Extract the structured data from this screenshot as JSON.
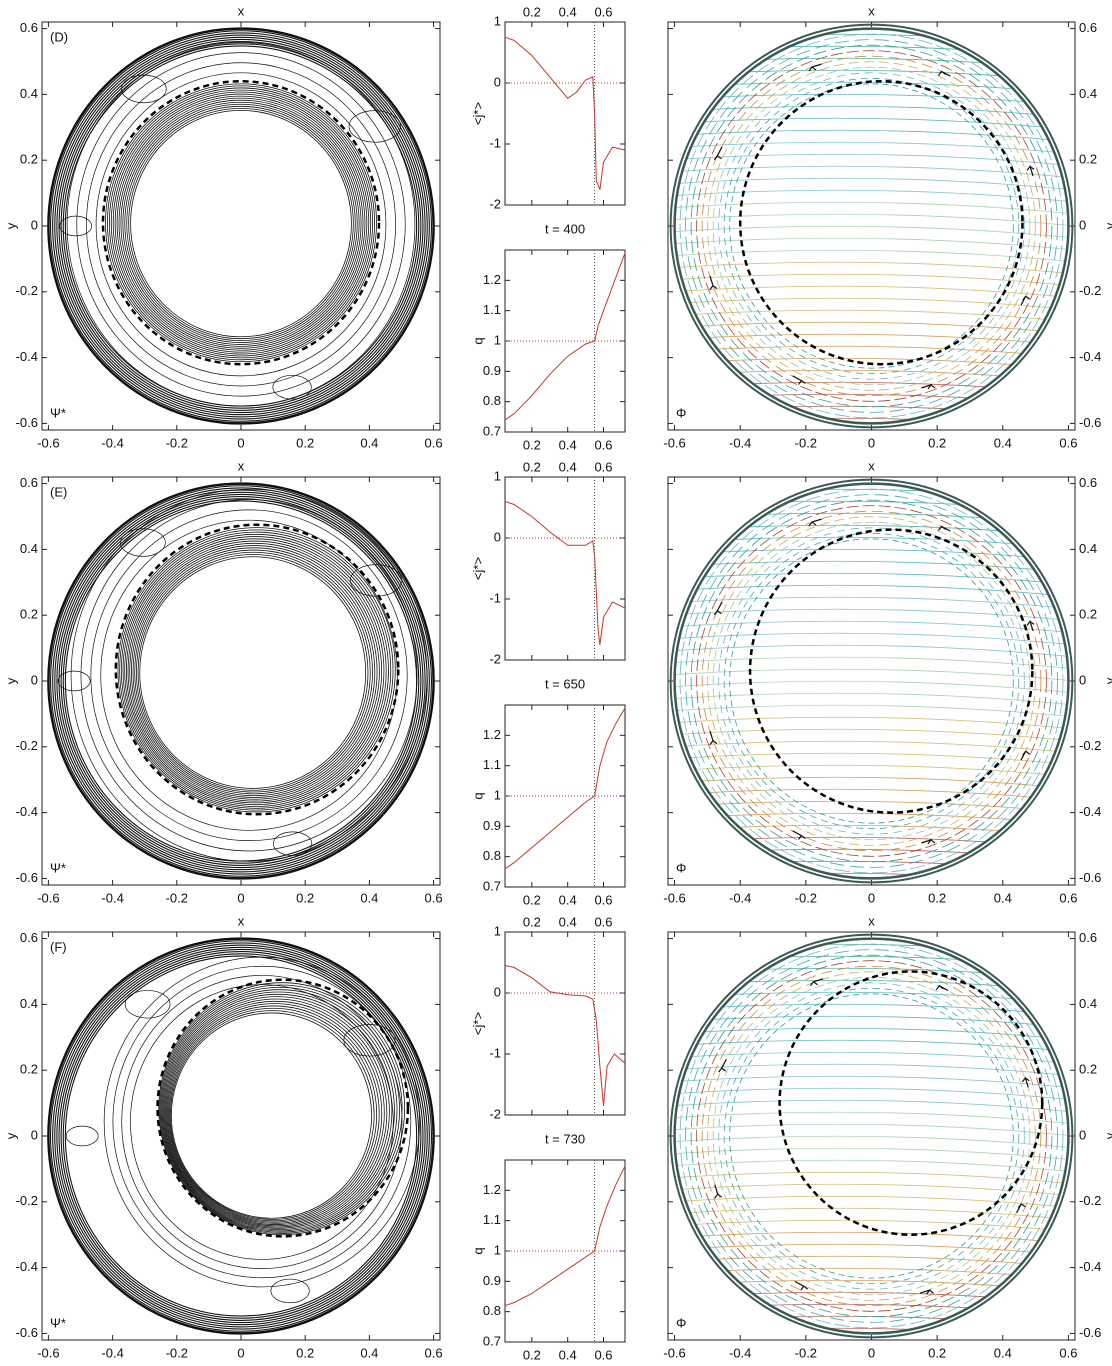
{
  "chart_data": [
    {
      "type": "contour",
      "panel": "(D)",
      "field_label": "Ψ*",
      "xlabel": "x",
      "ylabel": "y",
      "xlim": [
        -0.62,
        0.62
      ],
      "ylim": [
        -0.62,
        0.62
      ],
      "xticks": [
        -0.6,
        -0.4,
        -0.2,
        0,
        0.2,
        0.4,
        0.6
      ],
      "yticks": [
        -0.6,
        -0.4,
        -0.2,
        0,
        0.2,
        0.4,
        0.6
      ],
      "wall_radius": 0.6,
      "q1_surface": {
        "cx": 0,
        "cy": 0.01,
        "r": 0.43
      }
    },
    {
      "type": "line",
      "ylabel": "<j*>",
      "x_axis_side": "top",
      "x": [
        0.05,
        0.1,
        0.2,
        0.3,
        0.4,
        0.45,
        0.5,
        0.54,
        0.55,
        0.56,
        0.58,
        0.6,
        0.65,
        0.72
      ],
      "values": [
        0.75,
        0.7,
        0.45,
        0.1,
        -0.25,
        -0.15,
        0.05,
        0.1,
        -0.5,
        -1.6,
        -1.75,
        -1.3,
        -1.05,
        -1.1
      ],
      "color": "#c0392b",
      "xlim": [
        0.05,
        0.72
      ],
      "ylim": [
        -2,
        1
      ],
      "xticks": [
        0.2,
        0.4,
        0.6
      ],
      "yticks": [
        -2,
        -1,
        0,
        1
      ],
      "vline": 0.55,
      "hline": 0
    },
    {
      "type": "line",
      "title": "t = 400",
      "ylabel": "q",
      "x_axis_side": "bottom",
      "x": [
        0.05,
        0.1,
        0.2,
        0.3,
        0.4,
        0.5,
        0.55,
        0.57,
        0.6,
        0.65,
        0.72
      ],
      "values": [
        0.74,
        0.76,
        0.82,
        0.89,
        0.95,
        0.99,
        1.0,
        1.05,
        1.1,
        1.18,
        1.29
      ],
      "color": "#c0392b",
      "xlim": [
        0.05,
        0.72
      ],
      "ylim": [
        0.7,
        1.3
      ],
      "xticks": [
        0.2,
        0.4,
        0.6
      ],
      "yticks": [
        0.7,
        0.8,
        0.9,
        1,
        1.1,
        1.2
      ],
      "vline": 0.55,
      "hline": 1
    },
    {
      "type": "field",
      "field_label": "Φ",
      "xlabel": "x",
      "ylabel": "y",
      "ytick_side": "right",
      "xlim": [
        -0.62,
        0.62
      ],
      "ylim": [
        -0.62,
        0.62
      ],
      "xticks": [
        -0.6,
        -0.4,
        -0.2,
        0,
        0.2,
        0.4,
        0.6
      ],
      "yticks": [
        -0.6,
        -0.4,
        -0.2,
        0,
        0.2,
        0.4,
        0.6
      ],
      "wall_radius": 0.6,
      "q1_surface": {
        "cx": 0.03,
        "cy": 0.01,
        "r": 0.43
      }
    },
    {
      "type": "contour",
      "panel": "(E)",
      "field_label": "Ψ*",
      "xlabel": "x",
      "ylabel": "y",
      "xlim": [
        -0.62,
        0.62
      ],
      "ylim": [
        -0.62,
        0.62
      ],
      "xticks": [
        -0.6,
        -0.4,
        -0.2,
        0,
        0.2,
        0.4,
        0.6
      ],
      "yticks": [
        -0.6,
        -0.4,
        -0.2,
        0,
        0.2,
        0.4,
        0.6
      ],
      "wall_radius": 0.6,
      "q1_surface": {
        "cx": 0.05,
        "cy": 0.035,
        "r": 0.44
      }
    },
    {
      "type": "line",
      "ylabel": "<j*>",
      "x_axis_side": "top",
      "x": [
        0.05,
        0.1,
        0.2,
        0.3,
        0.4,
        0.5,
        0.54,
        0.55,
        0.57,
        0.58,
        0.6,
        0.65,
        0.72
      ],
      "values": [
        0.6,
        0.55,
        0.35,
        0.1,
        -0.12,
        -0.12,
        -0.05,
        -0.3,
        -1.5,
        -1.75,
        -1.3,
        -1.05,
        -1.15
      ],
      "color": "#c0392b",
      "xlim": [
        0.05,
        0.72
      ],
      "ylim": [
        -2,
        1
      ],
      "xticks": [
        0.2,
        0.4,
        0.6
      ],
      "yticks": [
        -2,
        -1,
        0,
        1
      ],
      "vline": 0.55,
      "hline": 0
    },
    {
      "type": "line",
      "title": "t = 650",
      "ylabel": "q",
      "x_axis_side": "bottom",
      "x": [
        0.05,
        0.1,
        0.2,
        0.3,
        0.4,
        0.5,
        0.55,
        0.58,
        0.62,
        0.67,
        0.72
      ],
      "values": [
        0.76,
        0.78,
        0.83,
        0.88,
        0.93,
        0.98,
        1.0,
        1.1,
        1.18,
        1.24,
        1.29
      ],
      "color": "#c0392b",
      "xlim": [
        0.05,
        0.72
      ],
      "ylim": [
        0.7,
        1.3
      ],
      "xticks": [
        0.2,
        0.4,
        0.6
      ],
      "yticks": [
        0.7,
        0.8,
        0.9,
        1,
        1.1,
        1.2
      ],
      "vline": 0.55,
      "hline": 1
    },
    {
      "type": "field",
      "field_label": "Φ",
      "xlabel": "x",
      "ylabel": "y",
      "ytick_side": "right",
      "xlim": [
        -0.62,
        0.62
      ],
      "ylim": [
        -0.62,
        0.62
      ],
      "xticks": [
        -0.6,
        -0.4,
        -0.2,
        0,
        0.2,
        0.4,
        0.6
      ],
      "yticks": [
        -0.6,
        -0.4,
        -0.2,
        0,
        0.2,
        0.4,
        0.6
      ],
      "wall_radius": 0.6,
      "q1_surface": {
        "cx": 0.06,
        "cy": 0.03,
        "r": 0.43
      }
    },
    {
      "type": "contour",
      "panel": "(F)",
      "field_label": "Ψ*",
      "xlabel": "x",
      "ylabel": "y",
      "xlim": [
        -0.62,
        0.62
      ],
      "ylim": [
        -0.62,
        0.62
      ],
      "xticks": [
        -0.6,
        -0.4,
        -0.2,
        0,
        0.2,
        0.4,
        0.6
      ],
      "yticks": [
        -0.6,
        -0.4,
        -0.2,
        0,
        0.2,
        0.4,
        0.6
      ],
      "wall_radius": 0.6,
      "q1_surface": {
        "cx": 0.13,
        "cy": 0.085,
        "r": 0.39
      }
    },
    {
      "type": "line",
      "ylabel": "<j*>",
      "x_axis_side": "top",
      "x": [
        0.05,
        0.1,
        0.2,
        0.3,
        0.4,
        0.5,
        0.54,
        0.56,
        0.58,
        0.6,
        0.62,
        0.66,
        0.72
      ],
      "values": [
        0.45,
        0.42,
        0.25,
        0.02,
        -0.03,
        -0.05,
        -0.1,
        -0.45,
        -1.2,
        -1.85,
        -1.2,
        -1.0,
        -1.15
      ],
      "color": "#c0392b",
      "xlim": [
        0.05,
        0.72
      ],
      "ylim": [
        -2,
        1
      ],
      "xticks": [
        0.2,
        0.4,
        0.6
      ],
      "yticks": [
        -2,
        -1,
        0,
        1
      ],
      "vline": 0.55,
      "hline": 0
    },
    {
      "type": "line",
      "title": "t = 730",
      "ylabel": "q",
      "x_axis_side": "bottom",
      "x": [
        0.05,
        0.1,
        0.2,
        0.3,
        0.4,
        0.5,
        0.55,
        0.58,
        0.62,
        0.67,
        0.72
      ],
      "values": [
        0.82,
        0.83,
        0.86,
        0.9,
        0.94,
        0.98,
        1.0,
        1.08,
        1.15,
        1.22,
        1.28
      ],
      "color": "#c0392b",
      "xlim": [
        0.05,
        0.72
      ],
      "ylim": [
        0.7,
        1.3
      ],
      "xticks": [
        0.2,
        0.4,
        0.6
      ],
      "yticks": [
        0.7,
        0.8,
        0.9,
        1,
        1.1,
        1.2
      ],
      "vline": 0.55,
      "hline": 1
    },
    {
      "type": "field",
      "field_label": "Φ",
      "xlabel": "x",
      "ylabel": "y",
      "ytick_side": "right",
      "xlim": [
        -0.62,
        0.62
      ],
      "ylim": [
        -0.62,
        0.62
      ],
      "xticks": [
        -0.6,
        -0.4,
        -0.2,
        0,
        0.2,
        0.4,
        0.6
      ],
      "yticks": [
        -0.6,
        -0.4,
        -0.2,
        0,
        0.2,
        0.4,
        0.6
      ],
      "wall_radius": 0.6,
      "q1_surface": {
        "cx": 0.12,
        "cy": 0.1,
        "r": 0.4
      }
    }
  ]
}
